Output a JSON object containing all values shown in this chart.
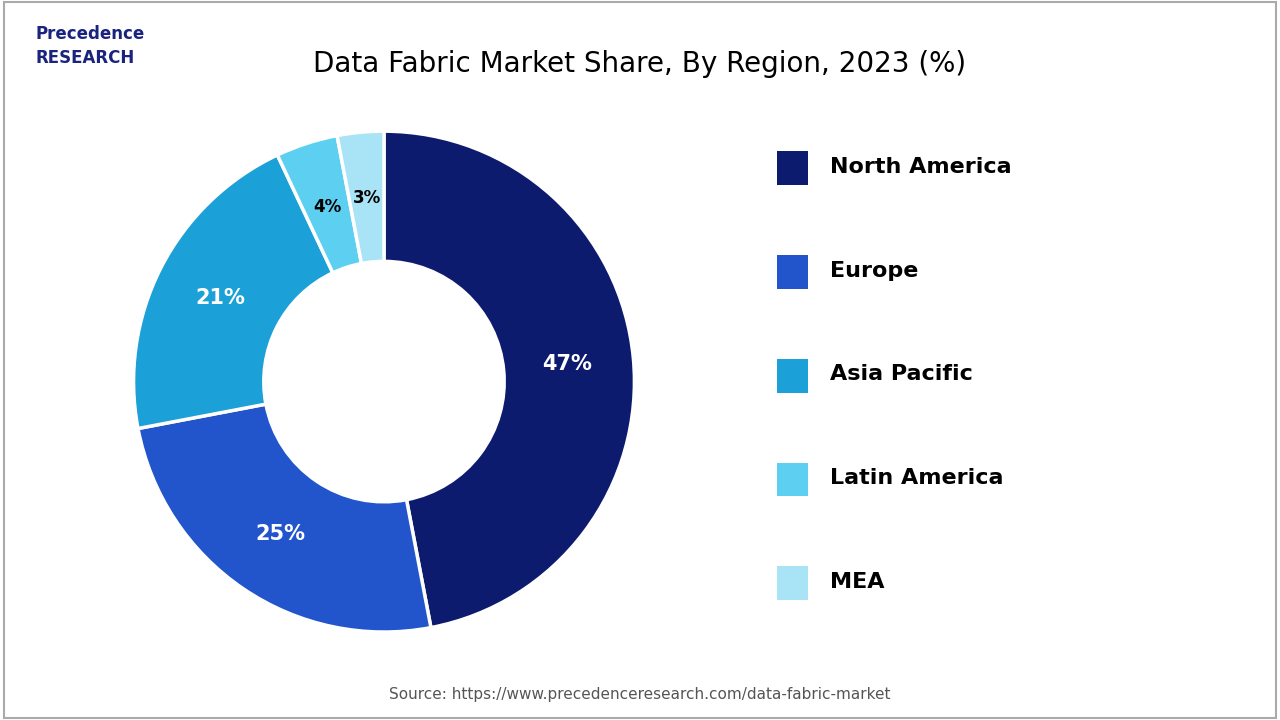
{
  "title": "Data Fabric Market Share, By Region, 2023 (%)",
  "title_fontsize": 20,
  "segments": [
    {
      "label": "North America",
      "value": 47,
      "color": "#0d1b6e"
    },
    {
      "label": "Europe",
      "value": 25,
      "color": "#2255cc"
    },
    {
      "label": "Asia Pacific",
      "value": 21,
      "color": "#1ba0d8"
    },
    {
      "label": "Latin America",
      "value": 4,
      "color": "#5dcff0"
    },
    {
      "label": "MEA",
      "value": 3,
      "color": "#a8e4f5"
    }
  ],
  "pct_label_colors": {
    "North America": "white",
    "Europe": "white",
    "Asia Pacific": "white",
    "Latin America": "black",
    "MEA": "black"
  },
  "source_text": "Source: https://www.precedenceresearch.com/data-fabric-market",
  "background_color": "#ffffff",
  "border_color": "#cccccc"
}
